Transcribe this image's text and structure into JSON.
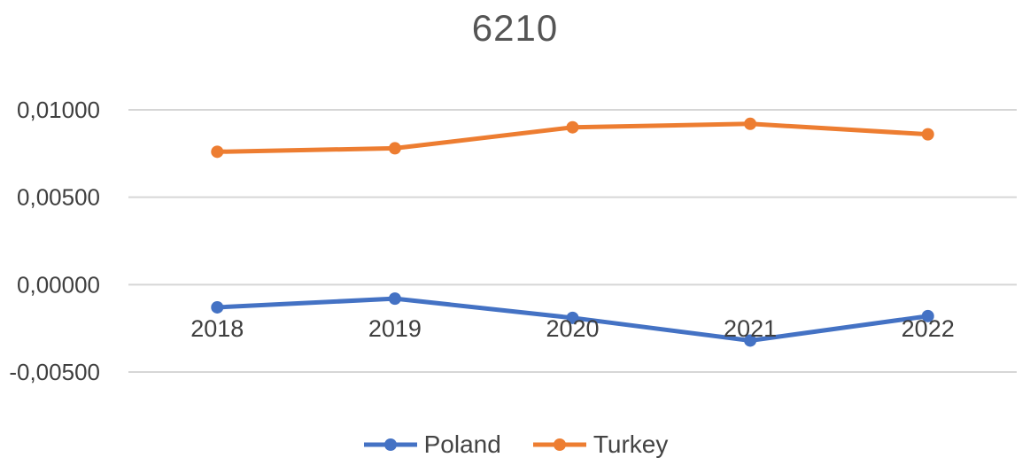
{
  "chart_data": {
    "type": "line",
    "title": "6210",
    "categories": [
      "2018",
      "2019",
      "2020",
      "2021",
      "2022"
    ],
    "series": [
      {
        "name": "Poland",
        "color": "#4472C4",
        "values": [
          -0.0013,
          -0.0008,
          -0.0019,
          -0.0032,
          -0.0018
        ]
      },
      {
        "name": "Turkey",
        "color": "#ED7D31",
        "values": [
          0.0076,
          0.0078,
          0.009,
          0.0092,
          0.0086
        ]
      }
    ],
    "ylim": [
      -0.005,
      0.01
    ],
    "yticks": [
      {
        "value": 0.01,
        "label": "0,01000"
      },
      {
        "value": 0.005,
        "label": "0,00500"
      },
      {
        "value": 0.0,
        "label": "0,00000"
      },
      {
        "value": -0.005,
        "label": "-0,00500"
      }
    ],
    "grid": true,
    "legend_position": "bottom",
    "decimal_separator": ","
  },
  "colors": {
    "gridline": "#D6D6D6",
    "title_text": "#555555",
    "axis_text": "#3F3F3F"
  }
}
